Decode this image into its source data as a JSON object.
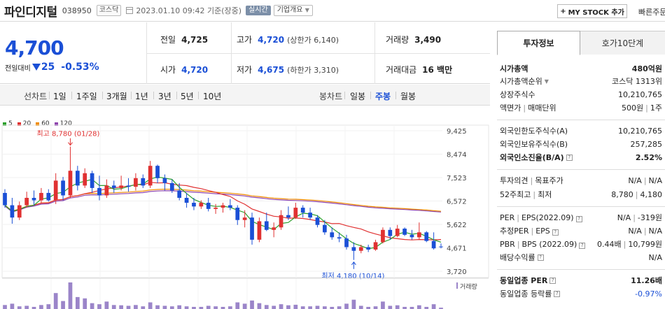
{
  "header": {
    "stock_name": "파인디지털",
    "stock_code": "038950",
    "market_badge": "코스닥",
    "datetime": "2023.01.10 09:42",
    "basis": "기준(장중)",
    "realtime": "실시간",
    "company_info": "기업개요",
    "mystock_label": "MY STOCK 추가",
    "quick_order": "빠른주문"
  },
  "price": {
    "current": "4,700",
    "diff_label": "전일대비",
    "diff_value": "25",
    "diff_pct": "-0.53%"
  },
  "metrics": {
    "prev_label": "전일",
    "prev_value": "4,725",
    "high_label": "고가",
    "high_value": "4,720",
    "upper_limit": "(상한가 6,140)",
    "volume_label": "거래량",
    "volume_value": "3,490",
    "open_label": "시가",
    "open_value": "4,720",
    "low_label": "저가",
    "low_value": "4,675",
    "lower_limit": "(하한가 3,310)",
    "amount_label": "거래대금",
    "amount_value": "16 백만"
  },
  "chart_tabs": {
    "line_label": "선차트",
    "line_periods": [
      "1일",
      "1주일",
      "3개월",
      "1년",
      "3년",
      "5년",
      "10년"
    ],
    "candle_label": "봉차트",
    "candle_periods": [
      "일봉",
      "주봉",
      "월봉"
    ],
    "active_candle": "주봉"
  },
  "colors": {
    "up": "#e03131",
    "down": "#1a4fd6",
    "ma5": "#2ca02c",
    "ma20": "#e03131",
    "ma60": "#f08c00",
    "ma120": "#8e44ad",
    "volume": "#9b85c9"
  },
  "chart_data": {
    "type": "candlestick",
    "legend": [
      {
        "name": "5",
        "color": "#2ca02c"
      },
      {
        "name": "20",
        "color": "#e03131"
      },
      {
        "name": "60",
        "color": "#f08c00"
      },
      {
        "name": "120",
        "color": "#8e44ad"
      }
    ],
    "y_ticks": [
      "9,425",
      "8,474",
      "7,523",
      "6,572",
      "5,622",
      "4,671",
      "3,720"
    ],
    "ylim": [
      3720,
      9425
    ],
    "max_annotation": "최고 8,780 (01/28)",
    "min_annotation": "최저 4,180 (10/14)",
    "volume_label": "거래량",
    "candles": [
      [
        6900,
        7050,
        6300,
        6400
      ],
      [
        6400,
        6700,
        5650,
        5900
      ],
      [
        5900,
        6550,
        5800,
        6400
      ],
      [
        6400,
        6950,
        6300,
        6700
      ],
      [
        6700,
        7000,
        6400,
        6600
      ],
      [
        6600,
        7100,
        6500,
        6900
      ],
      [
        6900,
        7050,
        6550,
        6600
      ],
      [
        6600,
        7700,
        6450,
        7400
      ],
      [
        7400,
        7550,
        6600,
        6800
      ],
      [
        6800,
        8780,
        6700,
        7800
      ],
      [
        7800,
        8000,
        7000,
        7200
      ],
      [
        7200,
        7900,
        7100,
        7700
      ],
      [
        7700,
        7800,
        6900,
        7100
      ],
      [
        7100,
        7600,
        6600,
        6800
      ],
      [
        6800,
        7450,
        6700,
        7200
      ],
      [
        7200,
        7400,
        6900,
        7100
      ],
      [
        7100,
        7600,
        7000,
        7200
      ],
      [
        7200,
        7500,
        6950,
        7150
      ],
      [
        7150,
        7700,
        7000,
        7500
      ],
      [
        7500,
        7650,
        7100,
        7200
      ],
      [
        7200,
        8200,
        7100,
        8000
      ],
      [
        8000,
        8050,
        7300,
        7500
      ],
      [
        7500,
        7650,
        7000,
        7300
      ],
      [
        7300,
        7450,
        6900,
        7000
      ],
      [
        7000,
        7300,
        6600,
        6700
      ],
      [
        6700,
        6900,
        6300,
        6500
      ],
      [
        6500,
        6700,
        6200,
        6350
      ],
      [
        6350,
        6600,
        6250,
        6500
      ],
      [
        6500,
        6700,
        6150,
        6250
      ],
      [
        6250,
        6450,
        6050,
        6300
      ],
      [
        6300,
        6500,
        6100,
        6400
      ],
      [
        6400,
        6650,
        6200,
        6300
      ],
      [
        6300,
        6400,
        5600,
        5800
      ],
      [
        5800,
        6200,
        5500,
        5900
      ],
      [
        5900,
        6100,
        4800,
        5000
      ],
      [
        5000,
        5900,
        4900,
        5750
      ],
      [
        5750,
        6100,
        5350,
        5400
      ],
      [
        5400,
        5700,
        5100,
        5500
      ],
      [
        5500,
        6200,
        5400,
        6000
      ],
      [
        6000,
        6350,
        5800,
        5900
      ],
      [
        5900,
        6500,
        5850,
        6300
      ],
      [
        6300,
        6400,
        5900,
        6100
      ],
      [
        6100,
        6300,
        5800,
        5900
      ],
      [
        5900,
        6000,
        5500,
        5600
      ],
      [
        5600,
        5800,
        5200,
        5300
      ],
      [
        5300,
        5500,
        5000,
        5100
      ],
      [
        5100,
        5300,
        4900,
        5050
      ],
      [
        5050,
        5200,
        4600,
        4700
      ],
      [
        4700,
        4900,
        4180,
        4550
      ],
      [
        4550,
        4800,
        4450,
        4700
      ],
      [
        4700,
        4800,
        4500,
        4600
      ],
      [
        4600,
        5000,
        4550,
        4900
      ],
      [
        4900,
        5500,
        4850,
        5400
      ],
      [
        5400,
        5500,
        5000,
        5150
      ],
      [
        5150,
        5600,
        5100,
        5450
      ],
      [
        5450,
        5500,
        5150,
        5200
      ],
      [
        5200,
        5400,
        5000,
        5100
      ],
      [
        5100,
        5700,
        5000,
        5300
      ],
      [
        5300,
        5350,
        4900,
        4950
      ],
      [
        4950,
        5300,
        4600,
        4650
      ],
      [
        4725,
        4850,
        4650,
        4700
      ]
    ],
    "volumes": [
      15,
      20,
      10,
      12,
      8,
      15,
      18,
      60,
      30,
      100,
      45,
      40,
      22,
      18,
      28,
      15,
      14,
      12,
      15,
      10,
      25,
      14,
      12,
      10,
      14,
      10,
      8,
      8,
      12,
      10,
      8,
      10,
      25,
      20,
      32,
      22,
      15,
      12,
      18,
      14,
      16,
      10,
      10,
      12,
      10,
      8,
      10,
      20,
      35,
      12,
      8,
      10,
      28,
      12,
      14,
      8,
      8,
      14,
      8,
      18,
      5
    ]
  },
  "panel": {
    "tab_active": "투자정보",
    "tab_inactive": "호가10단계",
    "market_cap_label": "시가총액",
    "market_cap_value": "480억원",
    "rank_label": "시가총액순위",
    "rank_value": "코스닥 1313위",
    "shares_label": "상장주식수",
    "shares_value": "10,210,765",
    "par_label": "액면가",
    "unit_label": "매매단위",
    "par_value": "500원",
    "unit_value": "1주",
    "foreign_limit_label": "외국인한도주식수(A)",
    "foreign_limit_value": "10,210,765",
    "foreign_hold_label": "외국인보유주식수(B)",
    "foreign_hold_value": "257,285",
    "foreign_ratio_label": "외국인소진율(B/A)",
    "foreign_ratio_value": "2.52%",
    "opinion_label": "투자의견",
    "target_label": "목표주가",
    "opinion_value": "N/A",
    "target_value": "N/A",
    "week52_high_label": "52주최고",
    "week52_low_label": "최저",
    "week52_high_value": "8,780",
    "week52_low_value": "4,180",
    "per_label": "PER",
    "eps_label": "EPS(2022.09)",
    "per_value": "N/A",
    "eps_value": "-319원",
    "est_per_label": "추정PER",
    "est_eps_label": "EPS",
    "est_per_value": "N/A",
    "est_eps_value": "N/A",
    "pbr_label": "PBR",
    "bps_label": "BPS (2022.09)",
    "pbr_value": "0.44배",
    "bps_value": "10,799원",
    "div_label": "배당수익률",
    "div_value": "N/A",
    "ind_per_label": "동일업종 PER",
    "ind_per_value": "11.26배",
    "ind_rate_label": "동일업종 등락률",
    "ind_rate_value": "-0.97%"
  }
}
